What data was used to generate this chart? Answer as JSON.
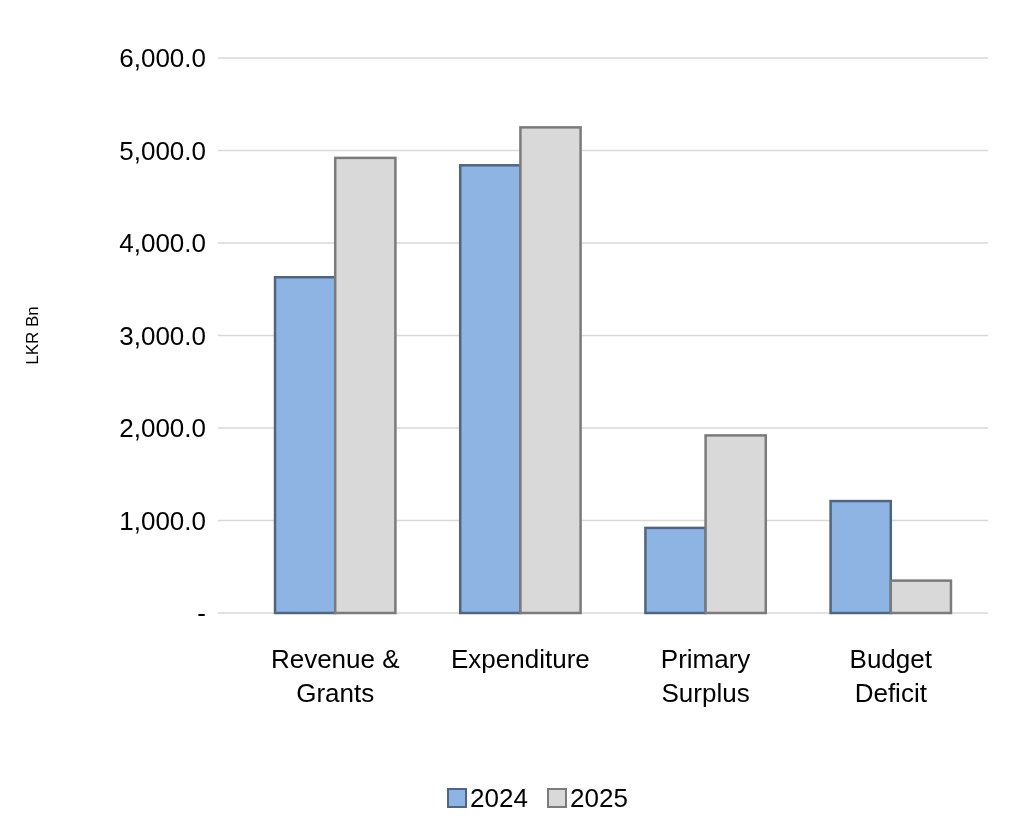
{
  "chart_data": {
    "type": "bar",
    "ylabel": "LKR Bn",
    "categories": [
      "Revenue & Grants",
      "Expenditure",
      "Primary Surplus",
      "Budget Deficit"
    ],
    "series": [
      {
        "name": "2024",
        "color": "#8db4e2",
        "values": [
          3630,
          4840,
          920,
          1210
        ]
      },
      {
        "name": "2025",
        "color": "#d9d9d9",
        "values": [
          4920,
          5250,
          1920,
          350
        ]
      }
    ],
    "ylim": [
      0,
      6000
    ],
    "yticks": [
      {
        "value": 0,
        "label": "-"
      },
      {
        "value": 1000,
        "label": "1,000.0"
      },
      {
        "value": 2000,
        "label": "2,000.0"
      },
      {
        "value": 3000,
        "label": "3,000.0"
      },
      {
        "value": 4000,
        "label": "4,000.0"
      },
      {
        "value": 5000,
        "label": "5,000.0"
      },
      {
        "value": 6000,
        "label": "6,000.0"
      }
    ],
    "grid": "y",
    "legend": "bottom"
  }
}
